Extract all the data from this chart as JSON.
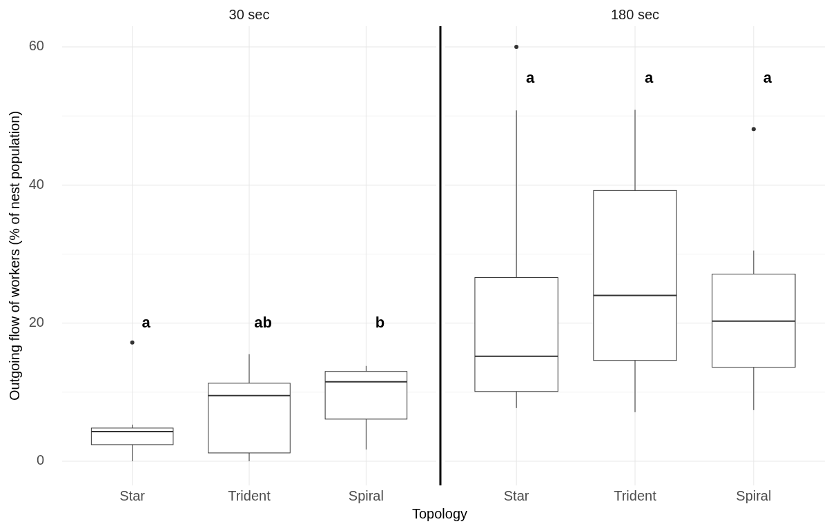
{
  "chart_data": [
    {
      "type": "box",
      "title": "30 sec",
      "xlabel": "Topology",
      "ylabel": "Outgoing flow of workers (% of nest population)",
      "categories": [
        "Star",
        "Trident",
        "Spiral"
      ],
      "ylim": [
        -3.5,
        63
      ],
      "yticks": [
        0,
        20,
        40,
        60
      ],
      "grid": true,
      "boxes": [
        {
          "low": 0,
          "q1": 2.4,
          "median": 4.3,
          "q3": 4.8,
          "high": 5.3,
          "outliers": [
            17.2
          ]
        },
        {
          "low": 0,
          "q1": 1.2,
          "median": 9.5,
          "q3": 11.3,
          "high": 15.5
        },
        {
          "low": 1.7,
          "q1": 6.1,
          "median": 11.5,
          "q3": 13.0,
          "high": 13.8
        }
      ],
      "annotations": [
        "a",
        "ab",
        "b"
      ]
    },
    {
      "type": "box",
      "title": "180 sec",
      "categories": [
        "Star",
        "Trident",
        "Spiral"
      ],
      "ylim": [
        -3.5,
        63
      ],
      "yticks": [
        0,
        20,
        40,
        60
      ],
      "grid": true,
      "tick_labels": "x",
      "boxes": [
        {
          "low": 7.7,
          "q1": 10.1,
          "median": 15.2,
          "q3": 26.6,
          "high": 50.8,
          "outliers": [
            60
          ]
        },
        {
          "low": 7.1,
          "q1": 14.6,
          "median": 24.0,
          "q3": 39.2,
          "high": 50.9
        },
        {
          "low": 7.4,
          "q1": 13.6,
          "median": 20.3,
          "q3": 27.1,
          "high": 30.5,
          "outliers": [
            48.1
          ]
        }
      ],
      "annotations": [
        "a",
        "a",
        "a"
      ]
    }
  ]
}
